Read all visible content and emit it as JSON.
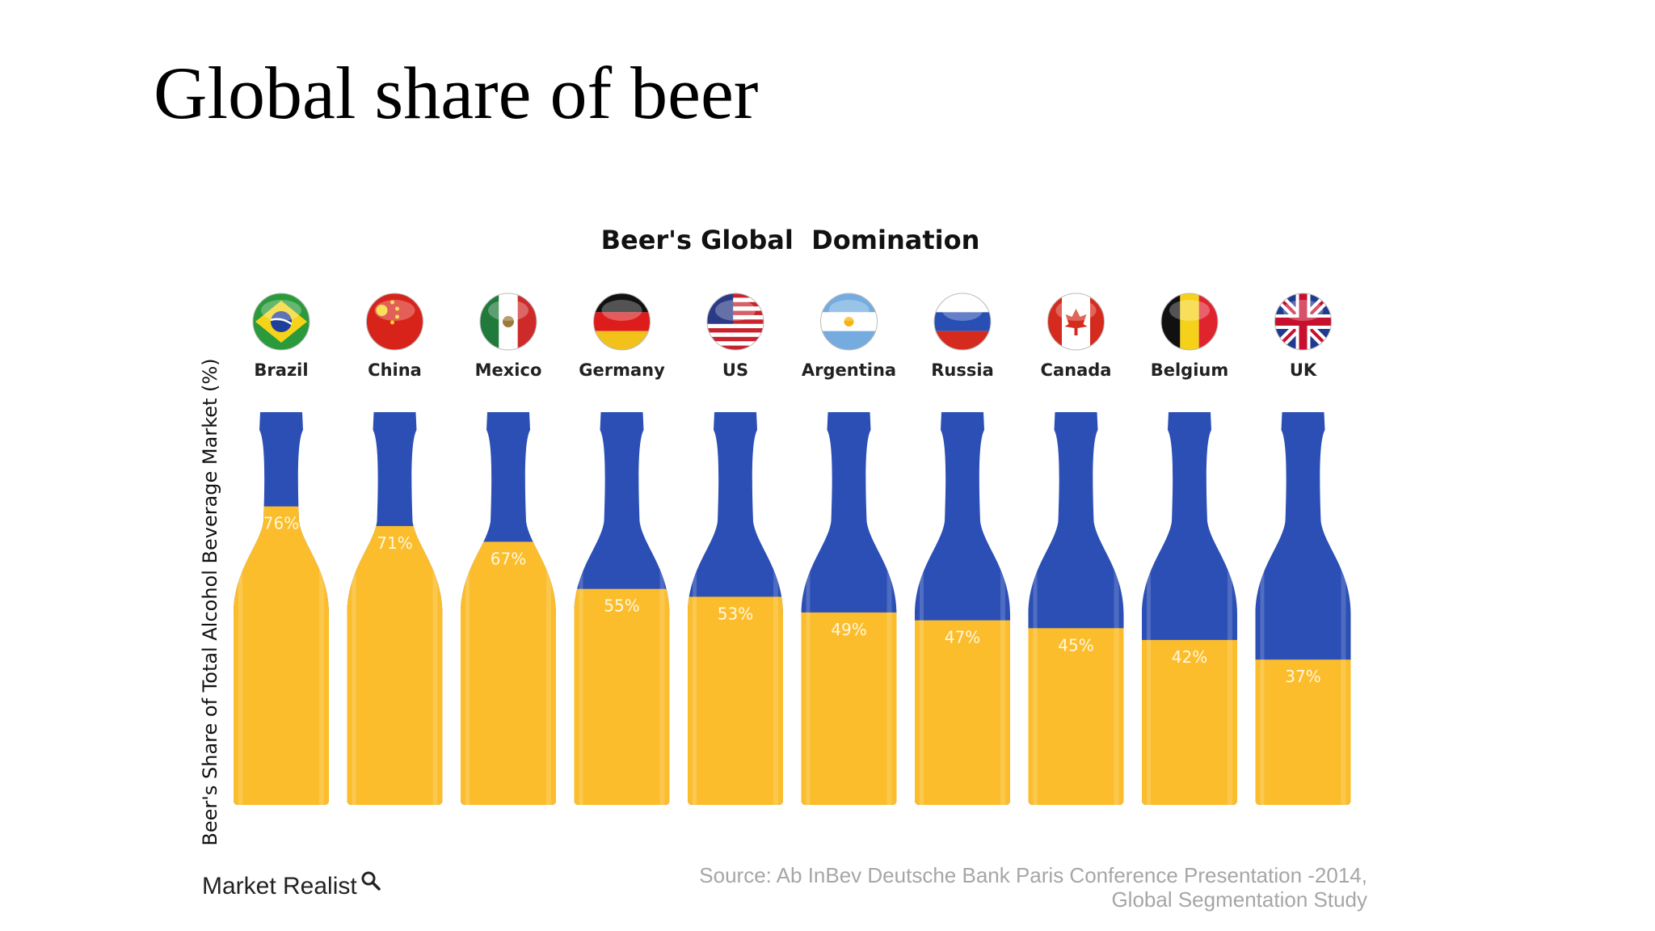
{
  "slide": {
    "title": "Global share of beer"
  },
  "chart_data": {
    "type": "bar",
    "title": "Beer's Global  Domination",
    "ylabel": "Beer's Share of Total Alcohol Beverage Market (%)",
    "xlabel": "",
    "ylim": [
      0,
      100
    ],
    "categories": [
      "Brazil",
      "China",
      "Mexico",
      "Germany",
      "US",
      "Argentina",
      "Russia",
      "Canada",
      "Belgium",
      "UK"
    ],
    "values": [
      76,
      71,
      67,
      55,
      53,
      49,
      47,
      45,
      42,
      37
    ],
    "labels": [
      "76%",
      "71%",
      "67%",
      "55%",
      "53%",
      "49%",
      "47%",
      "45%",
      "42%",
      "37%"
    ],
    "flags": [
      "brazil-flag-icon",
      "china-flag-icon",
      "mexico-flag-icon",
      "germany-flag-icon",
      "us-flag-icon",
      "argentina-flag-icon",
      "russia-flag-icon",
      "canada-flag-icon",
      "belgium-flag-icon",
      "uk-flag-icon"
    ],
    "colors": {
      "fill": "#fbbd2c",
      "empty": "#2b4fb5"
    }
  },
  "source": {
    "line1": "Source: Ab InBev Deutsche Bank Paris Conference Presentation -2014,",
    "line2": "Global Segmentation Study"
  },
  "logo": {
    "text": "Market Realist",
    "icon": "magnifier-icon"
  }
}
